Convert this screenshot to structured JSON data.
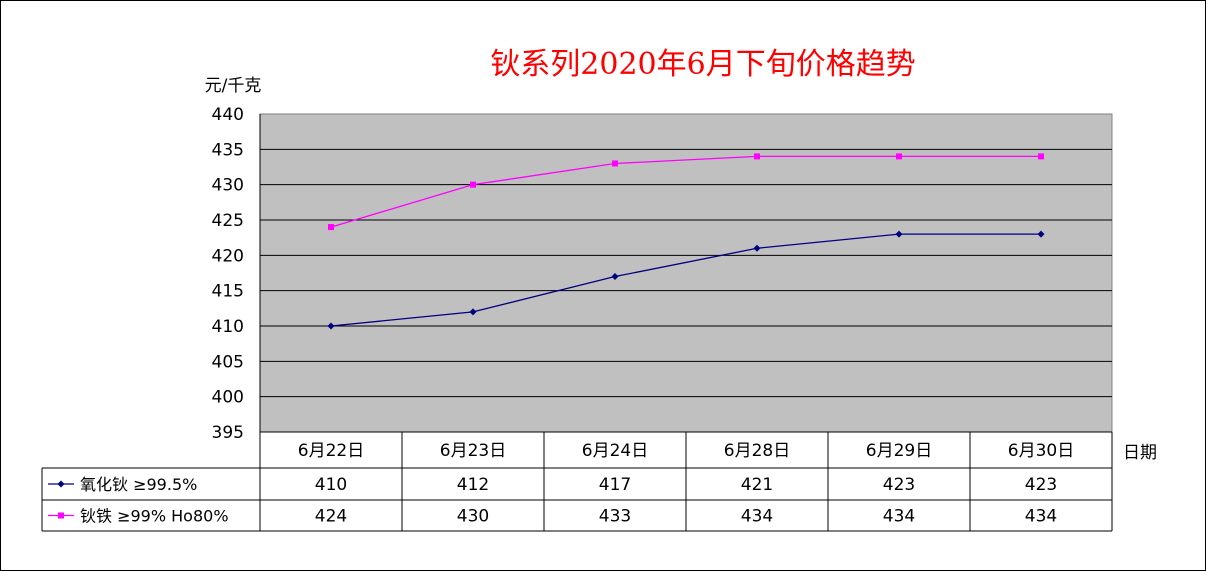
{
  "chart_data": {
    "type": "line",
    "title": "钬系列2020年6月下旬价格趋势",
    "ylabel": "元/千克",
    "xlabel": "日期",
    "categories": [
      "6月22日",
      "6月23日",
      "6月24日",
      "6月28日",
      "6月29日",
      "6月30日"
    ],
    "ylim": [
      395,
      440
    ],
    "yticks": [
      "440",
      "435",
      "430",
      "425",
      "420",
      "415",
      "410",
      "405",
      "400",
      "395"
    ],
    "grid": true,
    "legend": "data-table-left",
    "series": [
      {
        "name": "氧化钬 ≥99.5%",
        "color": "#000080",
        "marker": "diamond",
        "values": [
          410,
          412,
          417,
          421,
          423,
          423
        ]
      },
      {
        "name": "钬铁 ≥99% Ho80%",
        "color": "#ff00ff",
        "marker": "square",
        "values": [
          424,
          430,
          433,
          434,
          434,
          434
        ]
      }
    ],
    "plot_background": "#c0c0c0"
  }
}
